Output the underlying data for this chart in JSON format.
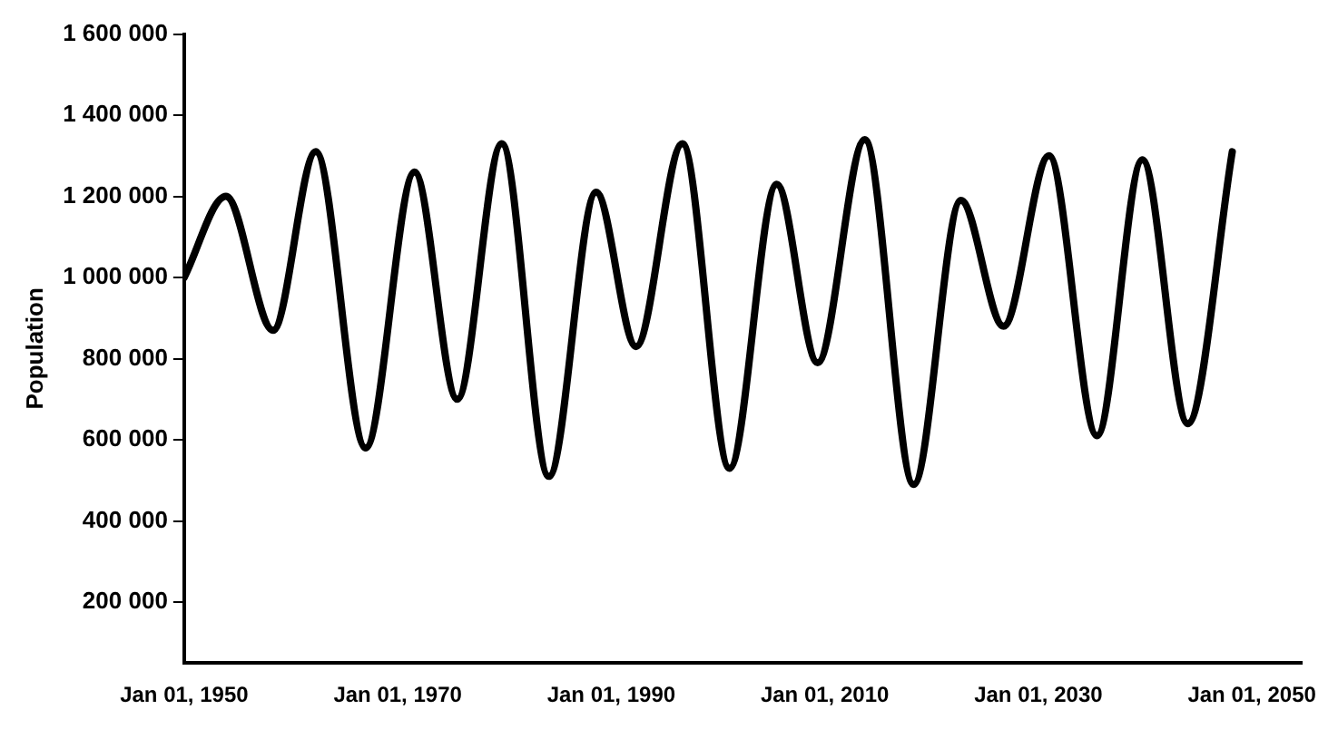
{
  "chart_data": {
    "type": "line",
    "ylabel": "Population",
    "x": [
      "1950-01",
      "1953-12",
      "1958-05",
      "1962-05",
      "1967-01",
      "1971-08",
      "1975-08",
      "1979-10",
      "1984-03",
      "1988-08",
      "1992-05",
      "1996-09",
      "2001-02",
      "2005-07",
      "2009-05",
      "2013-10",
      "2018-05",
      "2022-10",
      "2026-10",
      "2031-01",
      "2035-07",
      "2039-10",
      "2044-01",
      "2048-03"
    ],
    "series": [
      {
        "color": "#000000",
        "values": [
          1000000,
          1200000,
          870000,
          1310000,
          580000,
          1260000,
          700000,
          1330000,
          510000,
          1210000,
          830000,
          1330000,
          530000,
          1230000,
          790000,
          1340000,
          490000,
          1190000,
          880000,
          1300000,
          610000,
          1290000,
          640000,
          1310000
        ]
      }
    ],
    "xlim": [
      "1950-01-01",
      "2054-09-01"
    ],
    "xticks": [
      {
        "value": "1950-01-01",
        "label": "Jan 01, 1950"
      },
      {
        "value": "1970-01-01",
        "label": "Jan 01, 1970"
      },
      {
        "value": "1990-01-01",
        "label": "Jan 01, 1990"
      },
      {
        "value": "2010-01-01",
        "label": "Jan 01, 2010"
      },
      {
        "value": "2030-01-01",
        "label": "Jan 01, 2030"
      },
      {
        "value": "2050-01-01",
        "label": "Jan 01, 2050"
      }
    ],
    "ylim": [
      50000,
      1600000
    ],
    "yticks": [
      {
        "value": 200000,
        "label": "200 000"
      },
      {
        "value": 400000,
        "label": "400 000"
      },
      {
        "value": 600000,
        "label": "600 000"
      },
      {
        "value": 800000,
        "label": "800 000"
      },
      {
        "value": 1000000,
        "label": "1 000 000"
      },
      {
        "value": 1200000,
        "label": "1 200 000"
      },
      {
        "value": 1400000,
        "label": "1 400 000"
      },
      {
        "value": 1600000,
        "label": "1 600 000"
      }
    ],
    "grid": false,
    "legend": false,
    "marker": "none",
    "line_style": "solid"
  }
}
